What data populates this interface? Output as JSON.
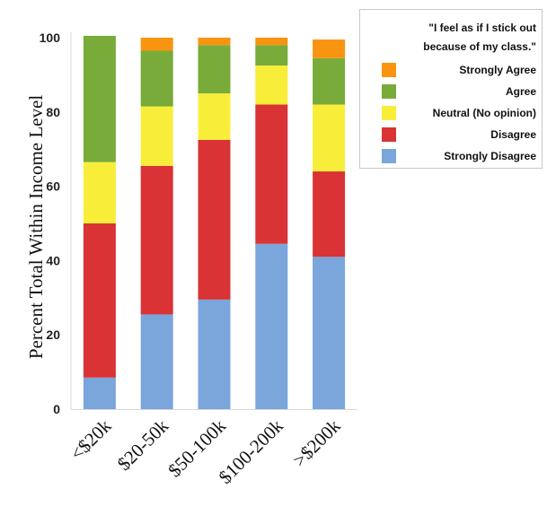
{
  "chart_data": {
    "type": "bar",
    "stacked": true,
    "title": "",
    "xlabel": "",
    "ylabel": "Percent Total Within Income Level",
    "ylim": [
      0,
      100
    ],
    "yticks": [
      0,
      20,
      40,
      60,
      80,
      100
    ],
    "grid": false,
    "legend_placement": "top-right",
    "categories": [
      "<$20k",
      "$20-50k",
      "$50-100k",
      "$100-200k",
      ">$200k"
    ],
    "series": [
      {
        "name": "Strongly Disagree",
        "color": "#7aa6dc",
        "values": [
          8.5,
          25.5,
          29.5,
          44.5,
          41.0
        ]
      },
      {
        "name": "Disagree",
        "color": "#d93336",
        "values": [
          41.5,
          40.0,
          43.0,
          37.5,
          23.0
        ]
      },
      {
        "name": "Neutral (No opinion)",
        "color": "#f8ee3a",
        "values": [
          16.5,
          16.0,
          12.5,
          10.5,
          18.0
        ]
      },
      {
        "name": "Agree",
        "color": "#78ab3a",
        "values": [
          34.0,
          15.0,
          13.0,
          5.5,
          12.5
        ]
      },
      {
        "name": "Strongly Agree",
        "color": "#f8940f",
        "values": [
          0.0,
          3.5,
          2.0,
          2.0,
          5.0
        ]
      }
    ],
    "legend_title_lines": [
      "\"I feel as if I stick out",
      "because of my class.\""
    ],
    "legend_order": [
      "Strongly Agree",
      "Agree",
      "Neutral (No opinion)",
      "Disagree",
      "Strongly Disagree"
    ]
  }
}
